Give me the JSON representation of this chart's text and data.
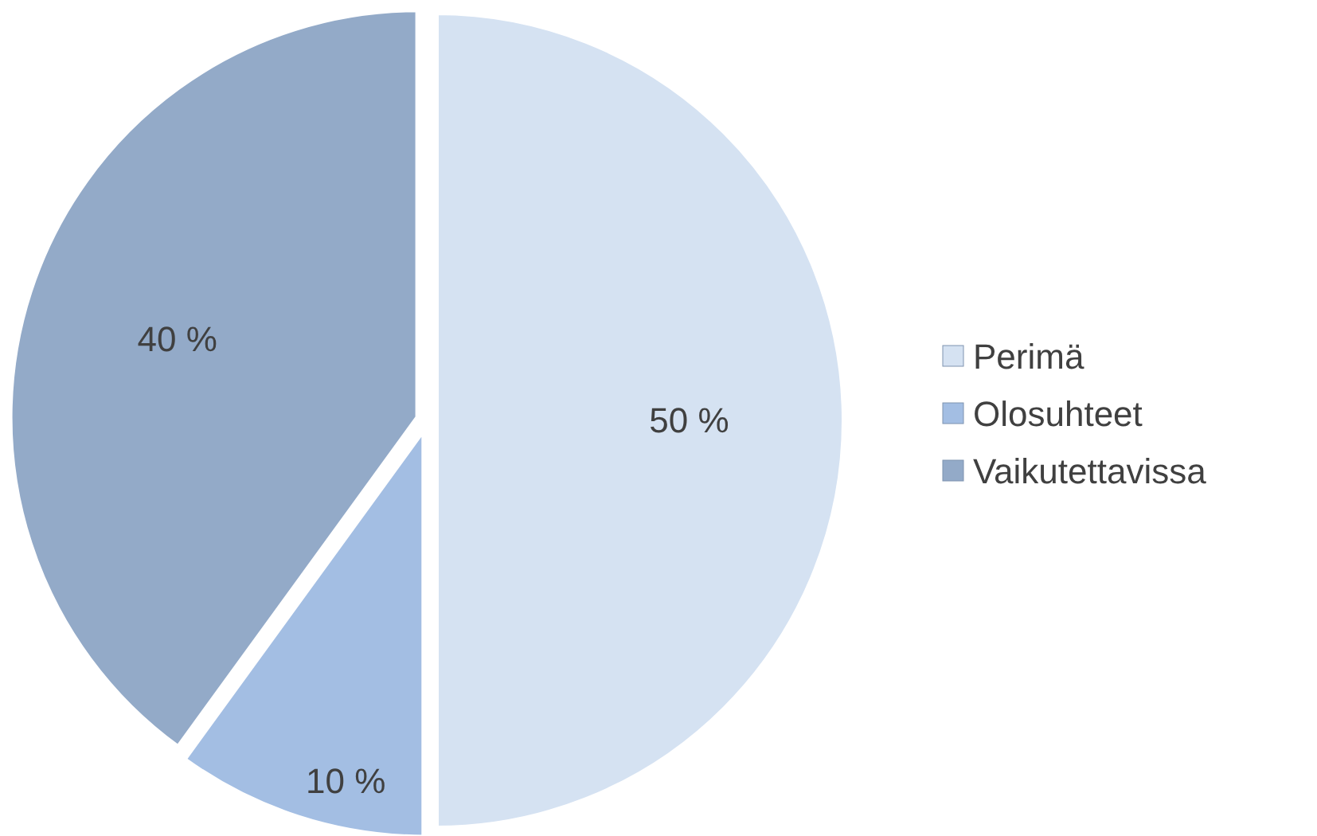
{
  "chart_data": {
    "type": "pie",
    "categories": [
      "Perimä",
      "Olosuhteet",
      "Vaikutettavissa"
    ],
    "values": [
      50,
      10,
      40
    ],
    "colors": [
      "#d5e2f2",
      "#a3bee3",
      "#93aac8"
    ],
    "value_labels": [
      "50 %",
      "10 %",
      "40 %"
    ],
    "legend": "right"
  }
}
